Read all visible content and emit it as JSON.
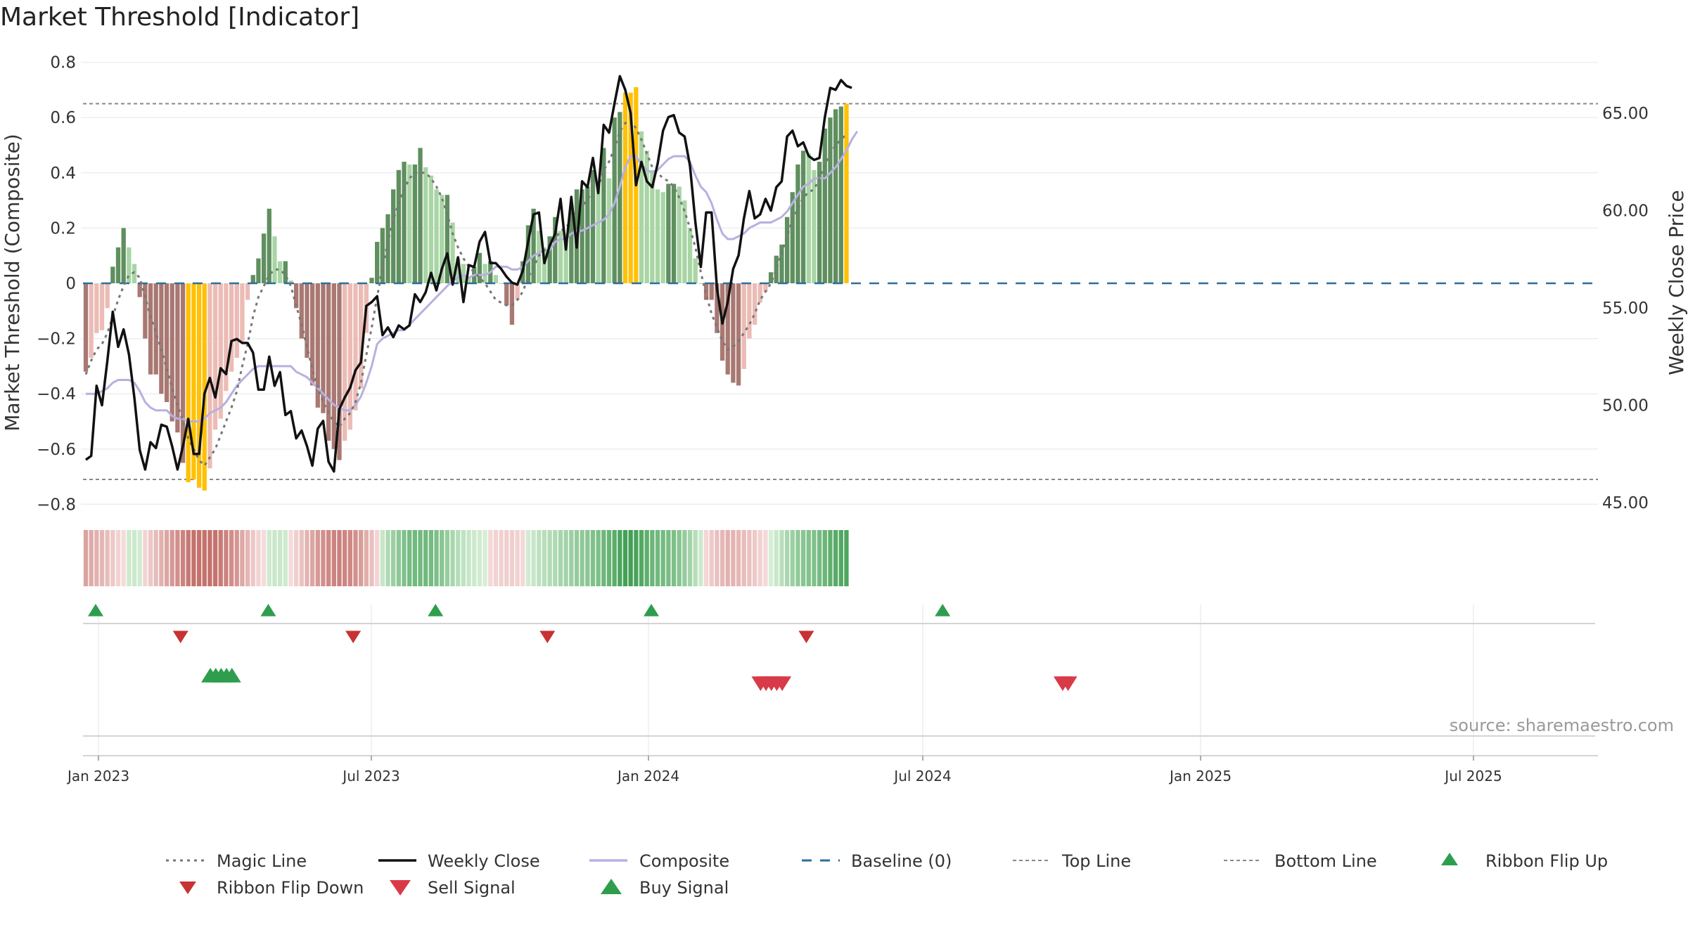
{
  "title": "Market Threshold [Indicator]",
  "source": "source: sharemaestro.com",
  "colors": {
    "pos_strong": "#5f8f5f",
    "pos_weak": "#a9d5a5",
    "neg_strong": "#a97872",
    "neg_weak": "#ebbcb5",
    "extreme": "#ffc107",
    "close": "#111111",
    "composite": "#b7b0e0",
    "magic": "#777777",
    "baseline": "#2c6e9e",
    "threshold": "#888888",
    "flip_up": "#2e9e4e",
    "flip_down": "#c83232",
    "sell": "#d93a48",
    "buy": "#2e9e4e"
  },
  "chart_data": {
    "type": "bar",
    "title": "Market Threshold [Indicator]",
    "ylabel": "Market Threshold (Composite)",
    "y2label": "Weekly Close Price",
    "ylim": [
      -0.8,
      0.8
    ],
    "y2lim": [
      45,
      67
    ],
    "yticks": [
      "0.8",
      "0.6",
      "0.4",
      "0.2",
      "0",
      "−0.2",
      "−0.4",
      "−0.6",
      "−0.8"
    ],
    "y2ticks": [
      "65.00",
      "60.00",
      "55.00",
      "50.00",
      "45.00"
    ],
    "xticks": [
      "Jan 2023",
      "Jul 2023",
      "Jan 2024",
      "Jul 2024",
      "Jan 2025",
      "Jul 2025"
    ],
    "top_line": 0.65,
    "bottom_line": -0.71,
    "composite_bars": [
      -0.32,
      -0.27,
      -0.18,
      -0.17,
      -0.09,
      0.06,
      0.13,
      0.2,
      0.13,
      0.07,
      -0.05,
      -0.2,
      -0.33,
      -0.33,
      -0.4,
      -0.43,
      -0.5,
      -0.54,
      -0.65,
      -0.72,
      -0.71,
      -0.74,
      -0.75,
      -0.67,
      -0.53,
      -0.49,
      -0.39,
      -0.32,
      -0.27,
      -0.21,
      -0.06,
      0.03,
      0.09,
      0.18,
      0.27,
      0.17,
      0.08,
      0.08,
      0.01,
      -0.09,
      -0.2,
      -0.27,
      -0.37,
      -0.45,
      -0.47,
      -0.57,
      -0.6,
      -0.64,
      -0.57,
      -0.53,
      -0.46,
      -0.38,
      -0.18,
      0.02,
      0.15,
      0.2,
      0.25,
      0.34,
      0.41,
      0.44,
      0.43,
      0.43,
      0.49,
      0.42,
      0.39,
      0.34,
      0.32,
      0.32,
      0.22,
      0.09,
      0.07,
      0.02,
      0.06,
      0.11,
      0.07,
      0.08,
      0.03,
      0.0,
      -0.08,
      -0.15,
      -0.06,
      0.08,
      0.21,
      0.27,
      0.19,
      0.13,
      0.17,
      0.24,
      0.19,
      0.18,
      0.28,
      0.34,
      0.34,
      0.35,
      0.41,
      0.37,
      0.49,
      0.38,
      0.6,
      0.62,
      0.69,
      0.69,
      0.71,
      0.55,
      0.48,
      0.41,
      0.34,
      0.33,
      0.36,
      0.36,
      0.35,
      0.3,
      0.2,
      0.09,
      0.0,
      -0.06,
      -0.06,
      -0.18,
      -0.28,
      -0.33,
      -0.36,
      -0.37,
      -0.31,
      -0.2,
      -0.15,
      -0.07,
      -0.03,
      0.04,
      0.1,
      0.14,
      0.24,
      0.33,
      0.43,
      0.48,
      0.47,
      0.41,
      0.44,
      0.56,
      0.6,
      0.63,
      0.64,
      0.65
    ],
    "weekly_close": [
      47.2,
      47.4,
      51.0,
      50.0,
      52.3,
      54.8,
      53.0,
      53.9,
      52.6,
      50.4,
      47.7,
      46.7,
      48.1,
      47.8,
      49.0,
      48.9,
      47.9,
      46.7,
      47.9,
      49.3,
      47.5,
      47.5,
      50.6,
      51.4,
      50.4,
      51.9,
      51.6,
      53.3,
      53.4,
      53.2,
      53.2,
      52.7,
      50.8,
      50.8,
      52.5,
      51.0,
      51.7,
      49.5,
      49.7,
      48.3,
      48.7,
      47.9,
      46.9,
      48.8,
      49.2,
      47.1,
      46.6,
      49.8,
      50.4,
      50.9,
      51.8,
      52.2,
      55.1,
      55.3,
      55.6,
      53.6,
      54.0,
      53.5,
      54.1,
      53.9,
      54.1,
      55.7,
      55.3,
      55.8,
      56.8,
      55.9,
      57.0,
      57.8,
      56.2,
      57.6,
      55.3,
      57.2,
      57.1,
      58.4,
      58.9,
      57.3,
      57.3,
      57.0,
      56.6,
      56.3,
      56.2,
      56.9,
      58.4,
      59.8,
      59.9,
      57.3,
      58.2,
      58.8,
      60.6,
      58.0,
      60.7,
      58.1,
      61.5,
      61.2,
      62.7,
      60.9,
      64.4,
      64.0,
      65.5,
      66.9,
      66.2,
      65.0,
      61.3,
      62.5,
      61.5,
      61.2,
      62.4,
      64.1,
      64.8,
      64.9,
      64.0,
      63.8,
      62.3,
      59.4,
      57.1,
      59.9,
      59.9,
      56.0,
      54.2,
      55.3,
      57.0,
      57.7,
      59.6,
      61.0,
      59.6,
      59.8,
      60.6,
      60.0,
      61.2,
      61.5,
      63.8,
      64.1,
      63.3,
      63.5,
      62.8,
      62.6,
      62.7,
      64.8,
      66.3,
      66.2,
      66.7,
      66.4,
      66.3
    ],
    "composite_line": [
      -0.4,
      -0.4,
      -0.4,
      -0.39,
      -0.38,
      -0.36,
      -0.35,
      -0.35,
      -0.35,
      -0.36,
      -0.39,
      -0.43,
      -0.45,
      -0.46,
      -0.46,
      -0.46,
      -0.48,
      -0.49,
      -0.49,
      -0.5,
      -0.5,
      -0.5,
      -0.49,
      -0.47,
      -0.46,
      -0.45,
      -0.43,
      -0.4,
      -0.37,
      -0.35,
      -0.33,
      -0.31,
      -0.3,
      -0.3,
      -0.3,
      -0.3,
      -0.3,
      -0.3,
      -0.3,
      -0.32,
      -0.33,
      -0.34,
      -0.36,
      -0.38,
      -0.4,
      -0.42,
      -0.44,
      -0.45,
      -0.46,
      -0.46,
      -0.44,
      -0.41,
      -0.36,
      -0.3,
      -0.22,
      -0.2,
      -0.19,
      -0.18,
      -0.17,
      -0.17,
      -0.15,
      -0.13,
      -0.11,
      -0.09,
      -0.07,
      -0.05,
      -0.03,
      -0.01,
      0.01,
      0.02,
      0.03,
      0.02,
      0.03,
      0.03,
      0.03,
      0.04,
      0.06,
      0.06,
      0.06,
      0.05,
      0.05,
      0.06,
      0.08,
      0.1,
      0.11,
      0.12,
      0.12,
      0.15,
      0.16,
      0.16,
      0.18,
      0.19,
      0.19,
      0.2,
      0.21,
      0.22,
      0.23,
      0.25,
      0.29,
      0.35,
      0.42,
      0.46,
      0.46,
      0.43,
      0.41,
      0.4,
      0.41,
      0.43,
      0.45,
      0.46,
      0.46,
      0.46,
      0.44,
      0.39,
      0.35,
      0.33,
      0.29,
      0.23,
      0.18,
      0.16,
      0.16,
      0.17,
      0.18,
      0.2,
      0.21,
      0.22,
      0.22,
      0.22,
      0.23,
      0.24,
      0.26,
      0.29,
      0.32,
      0.35,
      0.36,
      0.38,
      0.38,
      0.38,
      0.4,
      0.42,
      0.45,
      0.48,
      0.52,
      0.55
    ],
    "magic_line": [
      -0.33,
      -0.28,
      -0.24,
      -0.22,
      -0.18,
      -0.12,
      -0.06,
      -0.01,
      0.03,
      0.04,
      0.02,
      -0.05,
      -0.12,
      -0.18,
      -0.24,
      -0.31,
      -0.38,
      -0.44,
      -0.5,
      -0.56,
      -0.6,
      -0.64,
      -0.66,
      -0.63,
      -0.6,
      -0.55,
      -0.5,
      -0.45,
      -0.39,
      -0.3,
      -0.22,
      -0.12,
      -0.05,
      -0.01,
      0.03,
      0.05,
      0.05,
      0.03,
      -0.01,
      -0.08,
      -0.15,
      -0.23,
      -0.31,
      -0.38,
      -0.43,
      -0.47,
      -0.5,
      -0.52,
      -0.49,
      -0.47,
      -0.43,
      -0.36,
      -0.26,
      -0.16,
      -0.05,
      0.06,
      0.15,
      0.23,
      0.29,
      0.34,
      0.38,
      0.4,
      0.4,
      0.4,
      0.38,
      0.35,
      0.31,
      0.25,
      0.18,
      0.13,
      0.09,
      0.06,
      0.04,
      0.02,
      0.0,
      -0.03,
      -0.06,
      -0.07,
      -0.08,
      -0.08,
      -0.06,
      -0.03,
      0.02,
      0.06,
      0.1,
      0.12,
      0.14,
      0.16,
      0.19,
      0.2,
      0.23,
      0.26,
      0.28,
      0.3,
      0.34,
      0.35,
      0.41,
      0.44,
      0.49,
      0.55,
      0.58,
      0.59,
      0.56,
      0.52,
      0.47,
      0.42,
      0.4,
      0.38,
      0.37,
      0.35,
      0.31,
      0.26,
      0.2,
      0.13,
      0.04,
      -0.04,
      -0.11,
      -0.16,
      -0.21,
      -0.24,
      -0.23,
      -0.21,
      -0.18,
      -0.15,
      -0.11,
      -0.06,
      -0.03,
      0.0,
      0.05,
      0.11,
      0.17,
      0.23,
      0.27,
      0.31,
      0.33,
      0.34,
      0.38,
      0.43,
      0.47,
      0.5,
      0.52,
      0.54
    ],
    "ribbon_flip_up_weeks": [
      0,
      32,
      63,
      103,
      157
    ],
    "ribbon_flip_down_weeks": [
      16,
      48,
      84,
      132
    ],
    "buy_signal_weeks": [
      21,
      22,
      23,
      24,
      25
    ],
    "sell_signal_weeks": [
      123,
      124,
      125,
      126,
      127,
      179,
      180
    ],
    "legend": [
      "Magic Line",
      "Weekly Close",
      "Composite",
      "Baseline (0)",
      "Top Line",
      "Bottom Line",
      "Ribbon Flip Up",
      "Ribbon Flip Down",
      "Sell Signal",
      "Buy Signal"
    ]
  }
}
